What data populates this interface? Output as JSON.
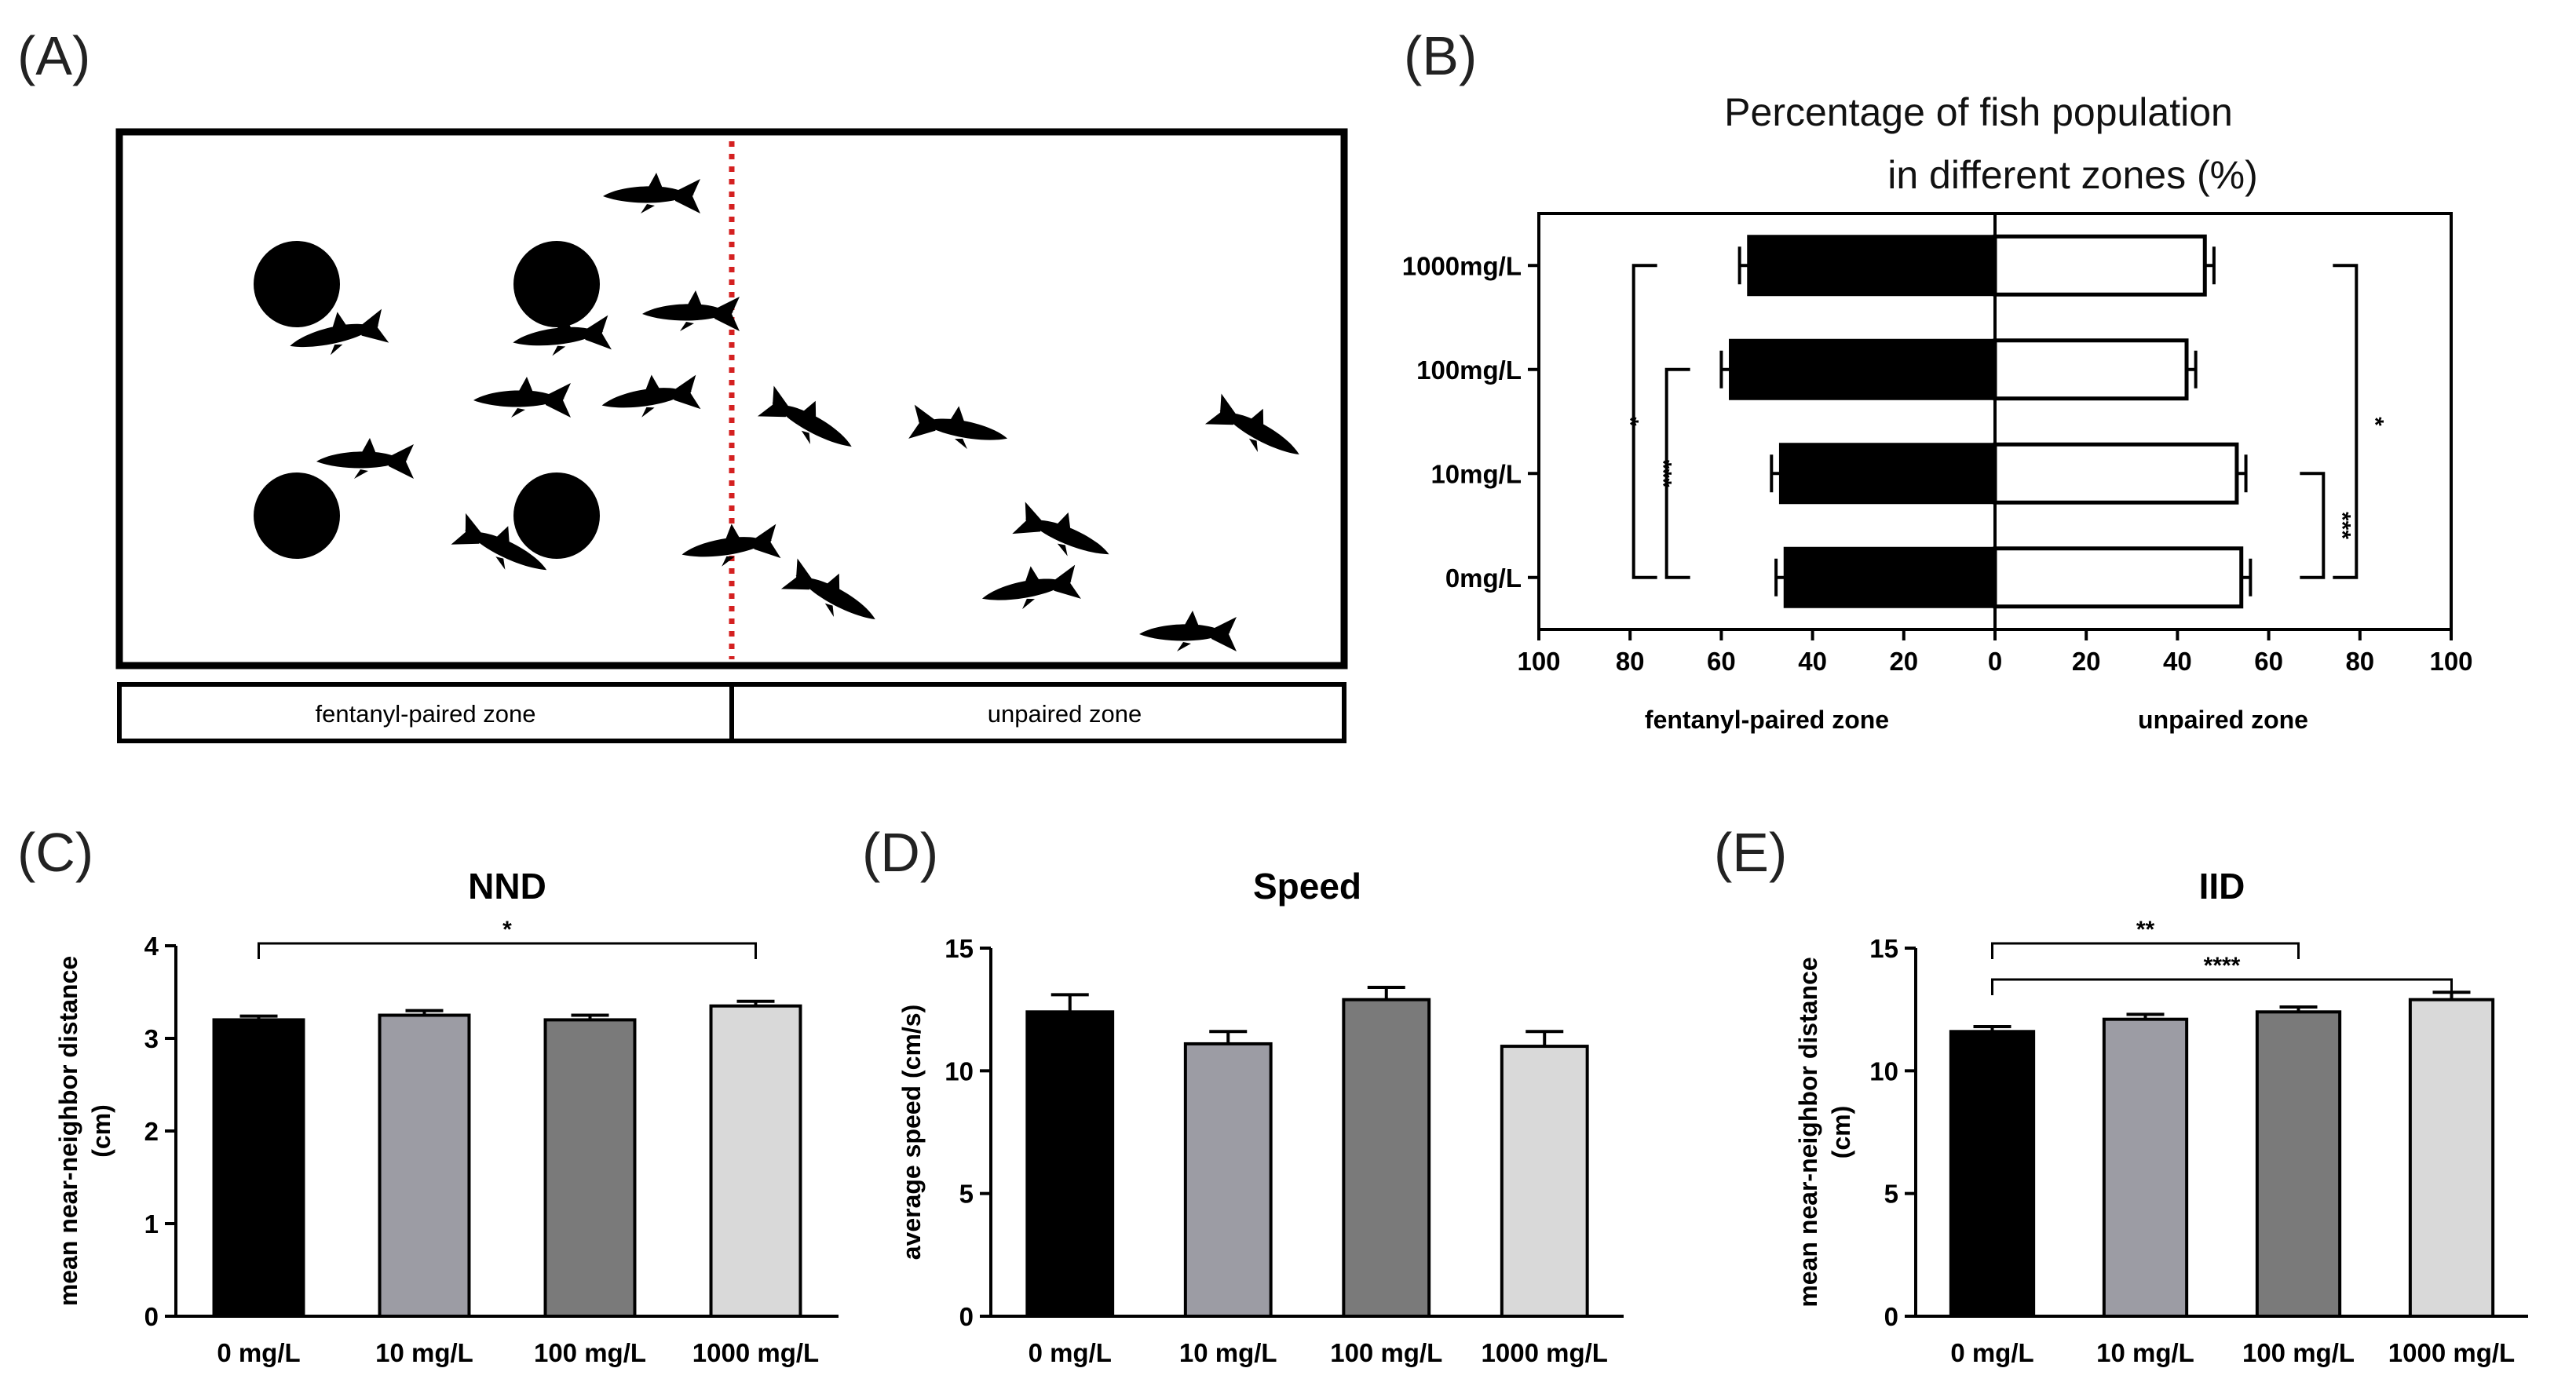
{
  "panels": {
    "A": {
      "label": "(A)",
      "zone_left": "fentanyl-paired zone",
      "zone_right": "unpaired zone"
    },
    "B": {
      "label": "(B)"
    },
    "C": {
      "label": "(C)"
    },
    "D": {
      "label": "(D)"
    },
    "E": {
      "label": "(E)"
    }
  },
  "chart_data": [
    {
      "id": "B",
      "type": "bar",
      "orientation": "horizontal-diverging",
      "title_line1": "Percentage of fish population",
      "title_line2": "in different zones (%)",
      "categories": [
        "1000mg/L",
        "100mg/L",
        "10mg/L",
        "0mg/L"
      ],
      "series": [
        {
          "name": "fentanyl-paired zone",
          "color": "#000000",
          "values": [
            54,
            58,
            47,
            46
          ],
          "errors": [
            2,
            2,
            2,
            2
          ]
        },
        {
          "name": "unpaired zone",
          "color": "#ffffff",
          "values": [
            46,
            42,
            53,
            54
          ],
          "errors": [
            2,
            2,
            2,
            2
          ]
        }
      ],
      "xlim": [
        -100,
        100
      ],
      "xticks": [
        -100,
        -80,
        -60,
        -40,
        -20,
        0,
        20,
        40,
        60,
        80,
        100
      ],
      "xtick_labels": [
        "100",
        "80",
        "60",
        "40",
        "20",
        "0",
        "20",
        "40",
        "60",
        "80",
        "100"
      ],
      "xlabel_left": "fentanyl-paired zone",
      "xlabel_right": "unpaired zone",
      "significance": [
        {
          "side": "left",
          "from": "1000mg/L",
          "to": "0mg/L",
          "label": "*"
        },
        {
          "side": "left",
          "from": "100mg/L",
          "to": "0mg/L",
          "label": "***"
        },
        {
          "side": "right",
          "from": "10mg/L",
          "to": "0mg/L",
          "label": "***"
        },
        {
          "side": "right",
          "from": "1000mg/L",
          "to": "0mg/L",
          "label": "*"
        }
      ]
    },
    {
      "id": "C",
      "type": "bar",
      "title": "NND",
      "ylabel_line1": "mean near-neighbor distance",
      "ylabel_line2": "(cm)",
      "categories": [
        "0  mg/L",
        "10 mg/L",
        "100 mg/L",
        "1000 mg/L"
      ],
      "values": [
        3.2,
        3.25,
        3.2,
        3.35
      ],
      "errors": [
        0.04,
        0.05,
        0.05,
        0.05
      ],
      "colors": [
        "#000000",
        "#9c9ca4",
        "#7a7a7a",
        "#d9d9d9"
      ],
      "ylim": [
        0,
        4
      ],
      "yticks": [
        0,
        1,
        2,
        3,
        4
      ],
      "significance": [
        {
          "from": 0,
          "to": 3,
          "label": "*"
        }
      ]
    },
    {
      "id": "D",
      "type": "bar",
      "title": "Speed",
      "ylabel_line1": "average speed (cm/s)",
      "ylabel_line2": "",
      "categories": [
        "0  mg/L",
        "10 mg/L",
        "100 mg/L",
        "1000 mg/L"
      ],
      "values": [
        12.4,
        11.1,
        12.9,
        11.0
      ],
      "errors": [
        0.7,
        0.5,
        0.5,
        0.6
      ],
      "colors": [
        "#000000",
        "#9c9ca4",
        "#7a7a7a",
        "#d9d9d9"
      ],
      "ylim": [
        0,
        15
      ],
      "yticks": [
        0,
        5,
        10,
        15
      ],
      "significance": []
    },
    {
      "id": "E",
      "type": "bar",
      "title": "IID",
      "ylabel_line1": "mean near-neighbor distance",
      "ylabel_line2": "(cm)",
      "categories": [
        "0  mg/L",
        "10 mg/L",
        "100 mg/L",
        "1000 mg/L"
      ],
      "values": [
        11.6,
        12.1,
        12.4,
        12.9
      ],
      "errors": [
        0.2,
        0.2,
        0.2,
        0.3
      ],
      "colors": [
        "#000000",
        "#9c9ca4",
        "#7a7a7a",
        "#d9d9d9"
      ],
      "ylim": [
        0,
        15
      ],
      "yticks": [
        0,
        5,
        10,
        15
      ],
      "significance": [
        {
          "from": 0,
          "to": 2,
          "label": "**"
        },
        {
          "from": 0,
          "to": 3,
          "label": "****"
        }
      ]
    }
  ]
}
